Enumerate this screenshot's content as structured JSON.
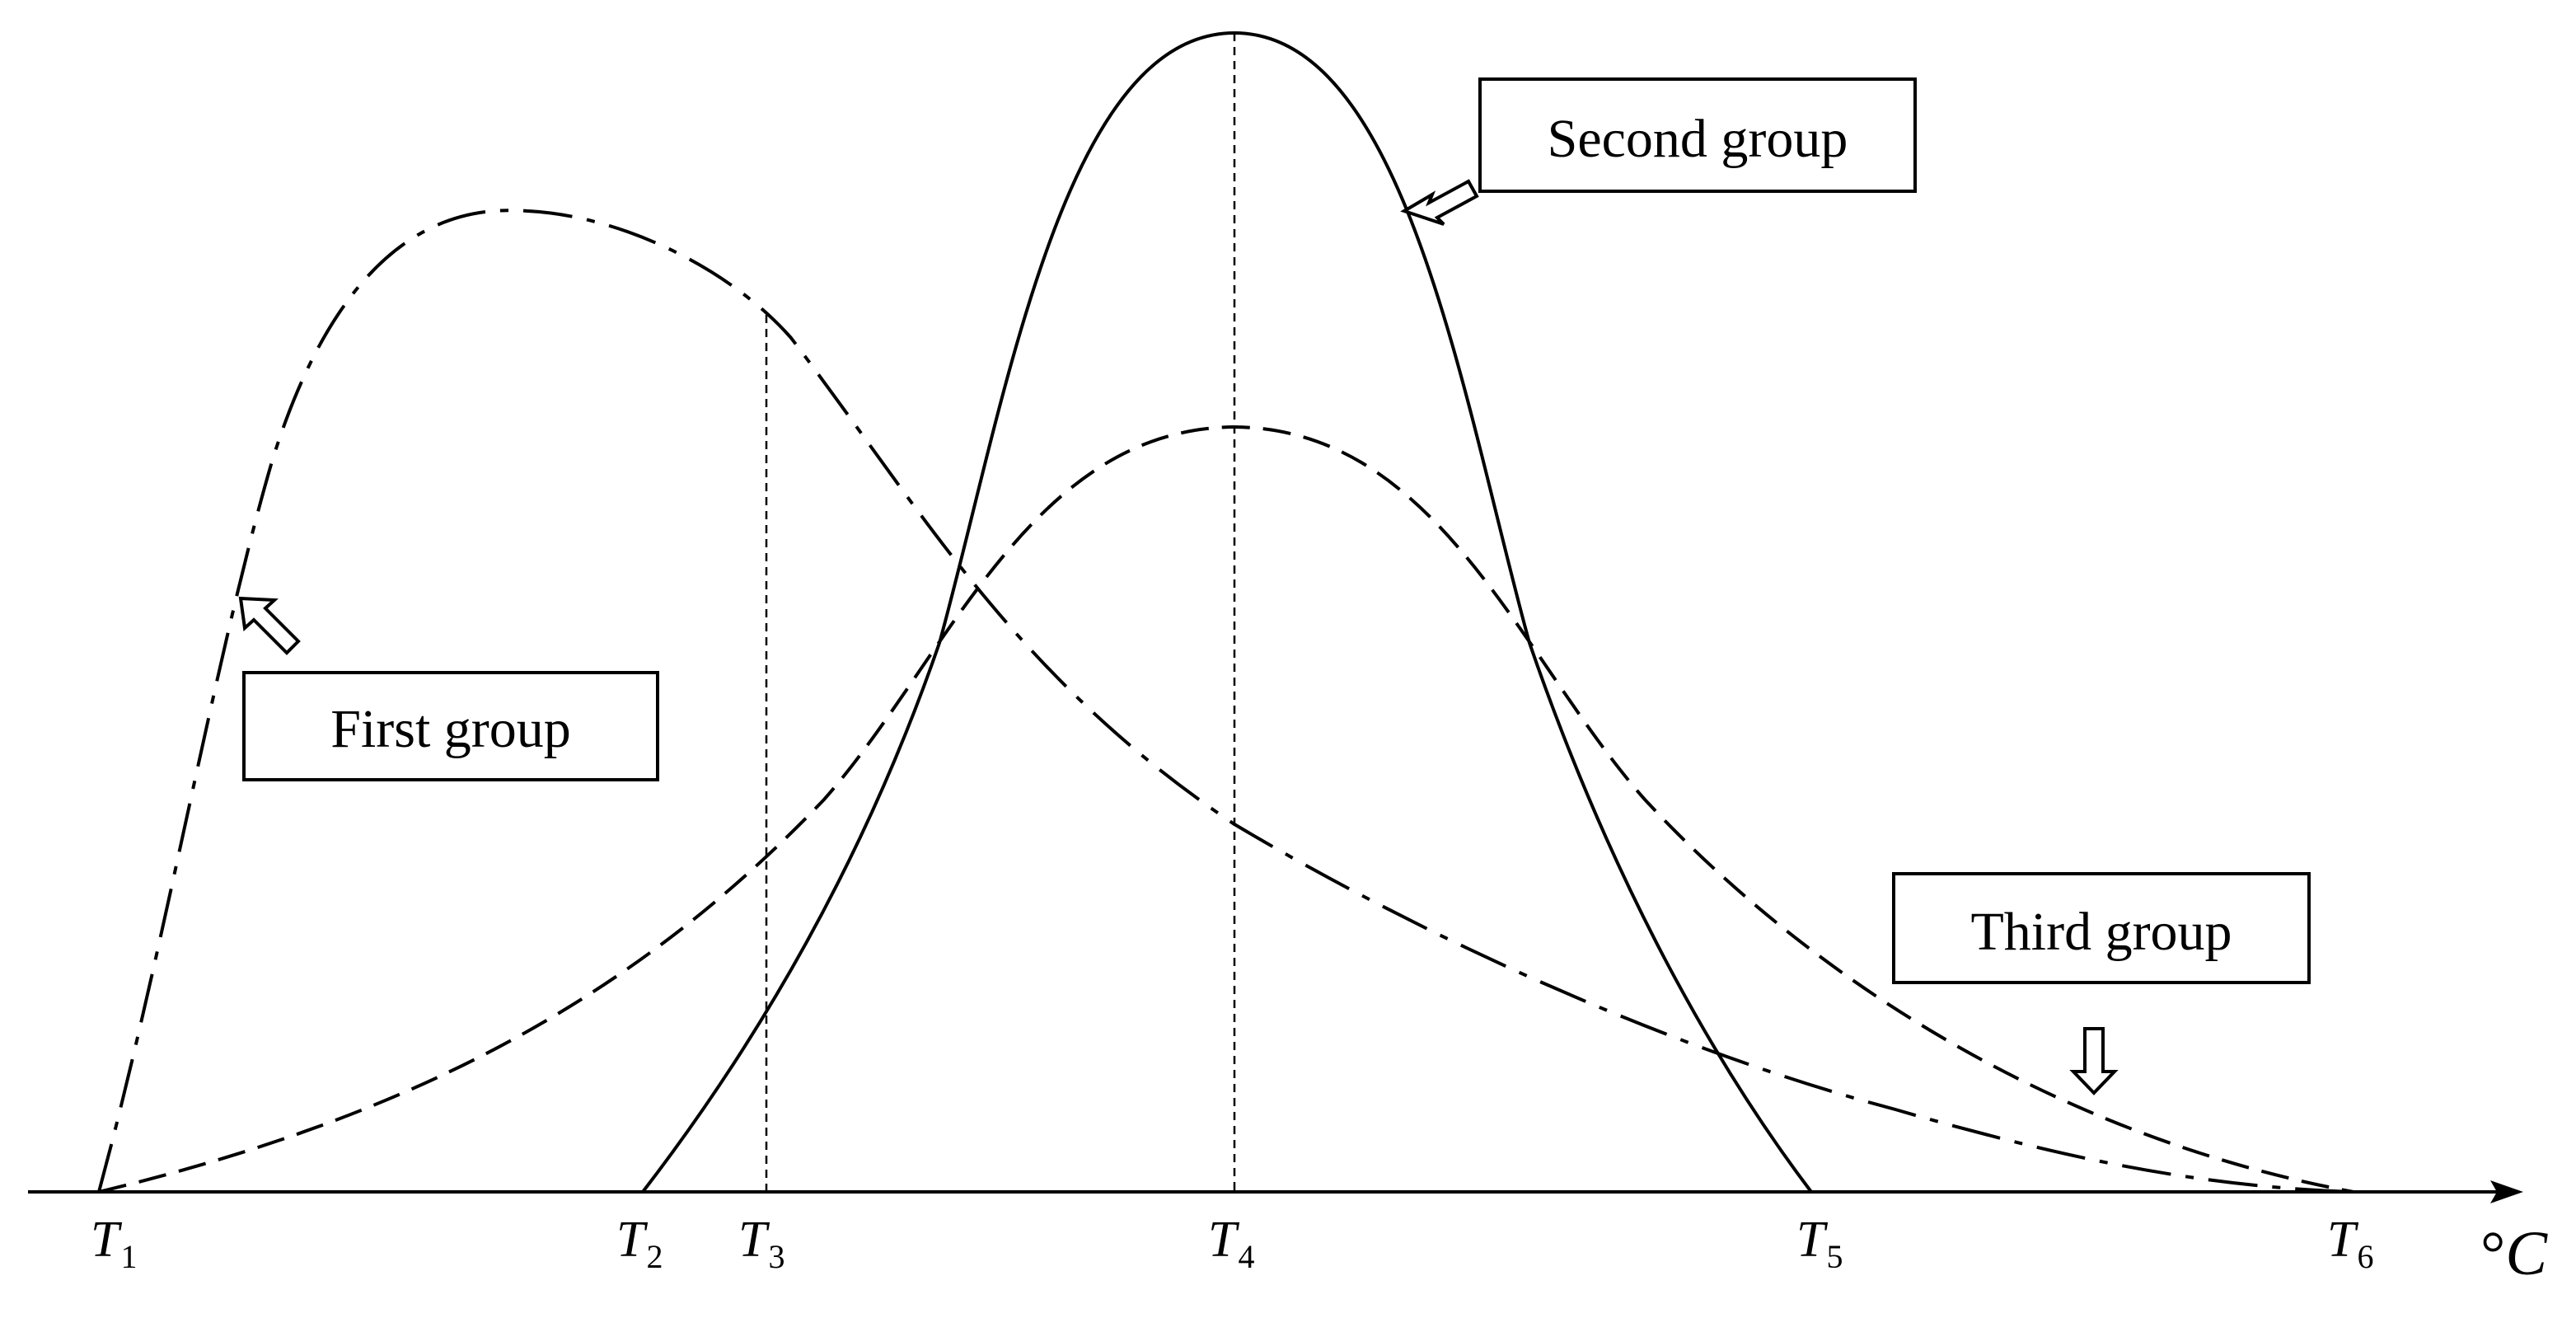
{
  "diagram": {
    "axis_unit": {
      "degree": "°",
      "letter": "C"
    },
    "ticks": [
      {
        "letter": "T",
        "sub": "1"
      },
      {
        "letter": "T",
        "sub": "2"
      },
      {
        "letter": "T",
        "sub": "3"
      },
      {
        "letter": "T",
        "sub": "4"
      },
      {
        "letter": "T",
        "sub": "5"
      },
      {
        "letter": "T",
        "sub": "6"
      }
    ],
    "groups": [
      {
        "label": "First group",
        "line_style": "dash-dot"
      },
      {
        "label": "Second group",
        "line_style": "solid"
      },
      {
        "label": "Third group",
        "line_style": "dashed"
      }
    ],
    "colors": {
      "line": "#000000",
      "background": "#ffffff"
    }
  }
}
